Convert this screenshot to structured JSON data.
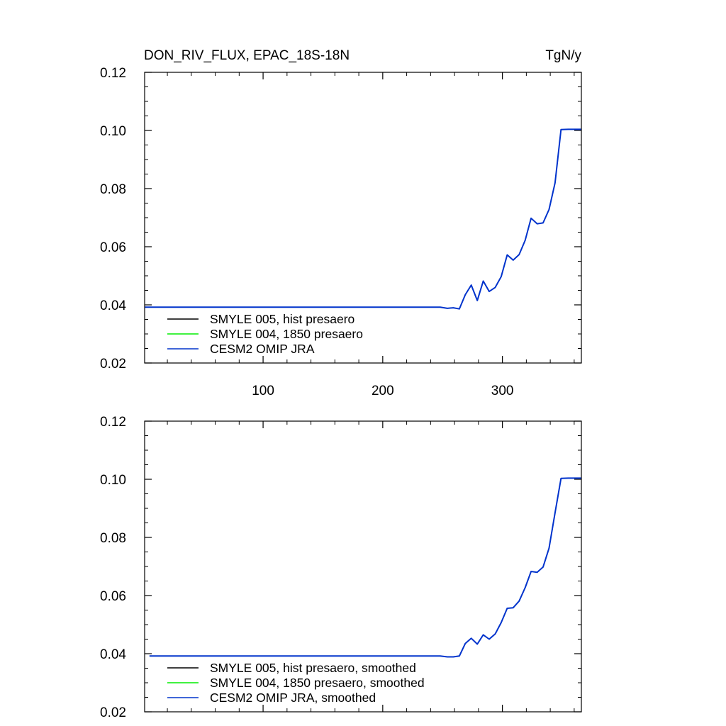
{
  "figure": {
    "title_left": "DON_RIV_FLUX, EPAC_18S-18N",
    "title_right": "TgN/y"
  },
  "chart_data": [
    {
      "type": "line",
      "panel": "top",
      "xlim": [
        1,
        366
      ],
      "ylim": [
        0.02,
        0.12
      ],
      "x_ticks": [
        100,
        200,
        300
      ],
      "x_tick_labels": [
        "100",
        "200",
        "300"
      ],
      "y_ticks": [
        0.02,
        0.04,
        0.06,
        0.08,
        0.1,
        0.12
      ],
      "y_tick_labels": [
        "0.02",
        "0.04",
        "0.06",
        "0.08",
        "0.10",
        "0.12"
      ],
      "grid": false,
      "legend_position": "bottom-left",
      "series": [
        {
          "name": "SMYLE 005, hist presaero",
          "color": "#000000",
          "values": []
        },
        {
          "name": "SMYLE 004, 1850 presaero",
          "color": "#00ee00",
          "values": []
        },
        {
          "name": "CESM2 OMIP JRA",
          "color": "#0033cc",
          "x": [
            1,
            100,
            200,
            248,
            254,
            259,
            264,
            269,
            274,
            279,
            284,
            289,
            294,
            299,
            304,
            309,
            314,
            319,
            324,
            329,
            334,
            339,
            344,
            349,
            355,
            366
          ],
          "values": [
            0.0392,
            0.0392,
            0.0392,
            0.0392,
            0.0388,
            0.039,
            0.0386,
            0.0435,
            0.0468,
            0.0415,
            0.0482,
            0.0446,
            0.046,
            0.0497,
            0.0572,
            0.0554,
            0.0573,
            0.0622,
            0.0698,
            0.0679,
            0.0682,
            0.0728,
            0.082,
            0.1003,
            0.1004,
            0.1004
          ]
        }
      ]
    },
    {
      "type": "line",
      "panel": "bottom",
      "xlim": [
        1,
        366
      ],
      "ylim": [
        0.02,
        0.12
      ],
      "x_ticks": [
        100,
        200,
        300
      ],
      "y_ticks": [
        0.02,
        0.04,
        0.06,
        0.08,
        0.1,
        0.12
      ],
      "y_tick_labels": [
        "0.02",
        "0.04",
        "0.06",
        "0.08",
        "0.10",
        "0.12"
      ],
      "grid": false,
      "legend_position": "bottom-left",
      "series": [
        {
          "name": "SMYLE 005, hist presaero, smoothed",
          "color": "#000000",
          "values": []
        },
        {
          "name": "SMYLE 004, 1850 presaero, smoothed",
          "color": "#00ee00",
          "values": []
        },
        {
          "name": "CESM2 OMIP JRA, smoothed",
          "color": "#0033cc",
          "x": [
            5,
            100,
            200,
            248,
            254,
            259,
            264,
            269,
            274,
            279,
            284,
            289,
            294,
            299,
            304,
            309,
            314,
            319,
            324,
            329,
            334,
            339,
            344,
            349,
            355,
            366
          ],
          "values": [
            0.0392,
            0.0392,
            0.0392,
            0.0392,
            0.0389,
            0.0389,
            0.0392,
            0.0435,
            0.0453,
            0.0433,
            0.0465,
            0.045,
            0.0468,
            0.0507,
            0.0556,
            0.0558,
            0.0581,
            0.0627,
            0.0683,
            0.068,
            0.0698,
            0.0763,
            0.0885,
            0.1003,
            0.1004,
            0.1004
          ]
        }
      ]
    }
  ]
}
